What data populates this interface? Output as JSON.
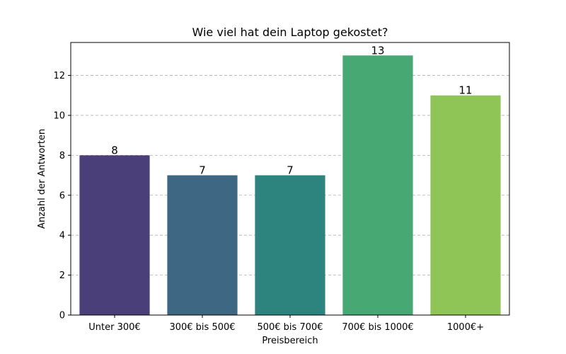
{
  "chart_data": {
    "type": "bar",
    "title": "Wie viel hat dein Laptop gekostet?",
    "xlabel": "Preisbereich",
    "ylabel": "Anzahl der Antworten",
    "categories": [
      "Unter 300€",
      "300€ bis 500€",
      "500€ bis 700€",
      "700€ bis 1000€",
      "1000€+"
    ],
    "values": [
      8,
      7,
      7,
      13,
      11
    ],
    "value_labels": [
      "8",
      "7",
      "7",
      "13",
      "11"
    ],
    "colors": [
      "#4b3f7a",
      "#3d6783",
      "#2d837e",
      "#47a873",
      "#8fc456"
    ],
    "ylim": [
      0,
      13.65
    ],
    "yticks": [
      0,
      2,
      4,
      6,
      8,
      10,
      12
    ],
    "ytick_labels": [
      "0",
      "2",
      "4",
      "6",
      "8",
      "10",
      "12"
    ],
    "grid": "horizontal dashed"
  }
}
